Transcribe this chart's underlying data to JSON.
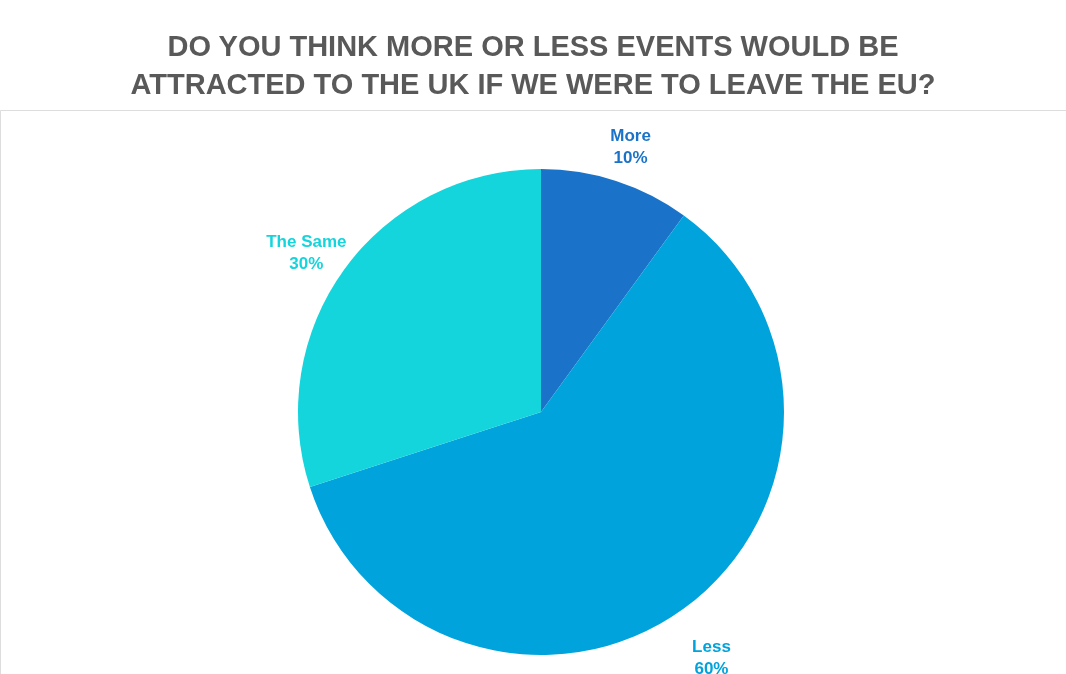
{
  "chart_data": {
    "type": "pie",
    "title": "DO YOU THINK MORE OR LESS EVENTS WOULD BE ATTRACTED TO THE UK IF WE WERE TO LEAVE THE EU?",
    "categories": [
      "More",
      "Less",
      "The Same"
    ],
    "values": [
      10,
      60,
      30
    ],
    "colors": [
      "#1a73c8",
      "#00a3dc",
      "#14d4dc"
    ],
    "value_labels": [
      "10%",
      "60%",
      "30%"
    ],
    "legend": false
  }
}
